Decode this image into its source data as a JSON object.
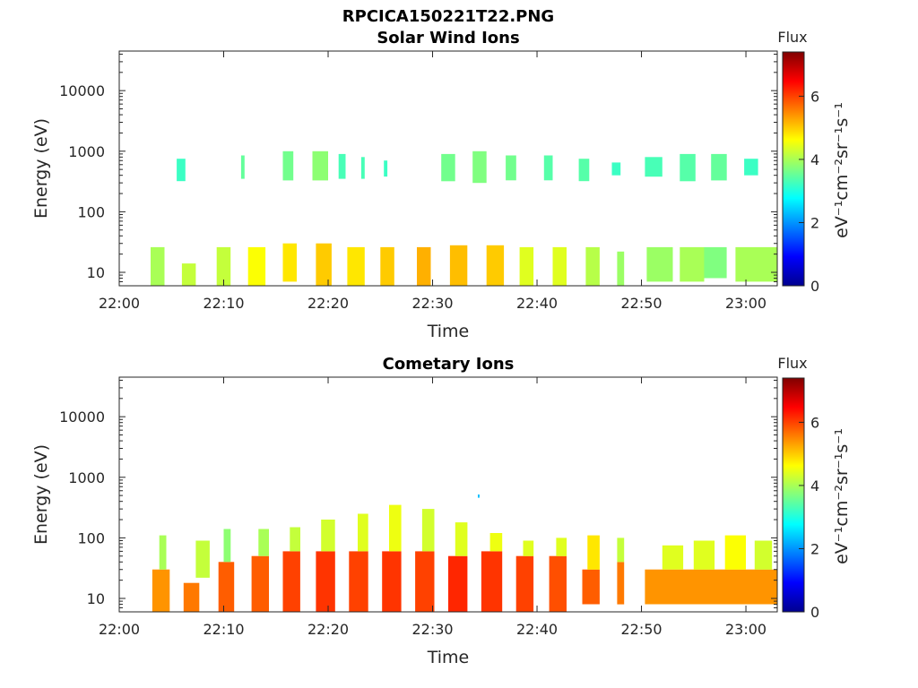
{
  "figure": {
    "title": "RPCICA150221T22.PNG"
  },
  "chart_data": [
    {
      "type": "heatmap",
      "title": "Solar Wind Ions",
      "xlabel": "Time",
      "ylabel": "Energy (eV)",
      "y_scale": "log",
      "ylim": [
        6,
        45000
      ],
      "xlim": [
        "22:00",
        "23:03"
      ],
      "x_ticks": [
        "22:00",
        "22:10",
        "22:20",
        "22:30",
        "22:40",
        "22:50",
        "23:00"
      ],
      "y_ticks": [
        "10",
        "100",
        "1000",
        "10000"
      ],
      "colorbar": {
        "title": "Flux",
        "unit": "eV⁻¹cm⁻²sr⁻¹s⁻¹",
        "range": [
          0,
          7.4
        ],
        "ticks": [
          "0",
          "2",
          "4",
          "6"
        ],
        "colormap": "jet"
      },
      "blocks": [
        {
          "t0": "22:05:30",
          "t1": "22:06:20",
          "e0": 320,
          "e1": 750,
          "flux": 3.2
        },
        {
          "t0": "22:11:40",
          "t1": "22:12:00",
          "e0": 350,
          "e1": 850,
          "flux": 3.5
        },
        {
          "t0": "22:15:40",
          "t1": "22:16:40",
          "e0": 330,
          "e1": 1000,
          "flux": 3.6
        },
        {
          "t0": "22:18:30",
          "t1": "22:20:00",
          "e0": 330,
          "e1": 1000,
          "flux": 3.8
        },
        {
          "t0": "22:21:00",
          "t1": "22:21:40",
          "e0": 350,
          "e1": 900,
          "flux": 3.3
        },
        {
          "t0": "22:23:10",
          "t1": "22:23:30",
          "e0": 350,
          "e1": 800,
          "flux": 3.3
        },
        {
          "t0": "22:25:20",
          "t1": "22:25:40",
          "e0": 380,
          "e1": 700,
          "flux": 3.2
        },
        {
          "t0": "22:30:50",
          "t1": "22:32:10",
          "e0": 320,
          "e1": 900,
          "flux": 3.6
        },
        {
          "t0": "22:33:50",
          "t1": "22:35:10",
          "e0": 300,
          "e1": 1000,
          "flux": 3.7
        },
        {
          "t0": "22:37:00",
          "t1": "22:38:00",
          "e0": 330,
          "e1": 850,
          "flux": 3.6
        },
        {
          "t0": "22:40:40",
          "t1": "22:41:30",
          "e0": 330,
          "e1": 850,
          "flux": 3.4
        },
        {
          "t0": "22:44:00",
          "t1": "22:45:00",
          "e0": 320,
          "e1": 750,
          "flux": 3.4
        },
        {
          "t0": "22:47:10",
          "t1": "22:48:00",
          "e0": 400,
          "e1": 650,
          "flux": 3.2
        },
        {
          "t0": "22:50:20",
          "t1": "22:52:00",
          "e0": 380,
          "e1": 800,
          "flux": 3.3
        },
        {
          "t0": "22:53:40",
          "t1": "22:55:10",
          "e0": 320,
          "e1": 900,
          "flux": 3.4
        },
        {
          "t0": "22:56:40",
          "t1": "22:58:10",
          "e0": 330,
          "e1": 900,
          "flux": 3.5
        },
        {
          "t0": "22:59:50",
          "t1": "23:01:10",
          "e0": 400,
          "e1": 750,
          "flux": 3.2
        },
        {
          "t0": "22:03:00",
          "t1": "22:04:20",
          "e0": 6,
          "e1": 26,
          "flux": 4.0
        },
        {
          "t0": "22:06:00",
          "t1": "22:07:20",
          "e0": 6,
          "e1": 14,
          "flux": 4.2
        },
        {
          "t0": "22:09:20",
          "t1": "22:10:40",
          "e0": 6,
          "e1": 26,
          "flux": 4.2
        },
        {
          "t0": "22:12:20",
          "t1": "22:14:00",
          "e0": 6,
          "e1": 26,
          "flux": 4.6
        },
        {
          "t0": "22:15:40",
          "t1": "22:17:00",
          "e0": 7,
          "e1": 30,
          "flux": 4.8
        },
        {
          "t0": "22:18:50",
          "t1": "22:20:20",
          "e0": 6,
          "e1": 30,
          "flux": 5.0
        },
        {
          "t0": "22:21:50",
          "t1": "22:23:30",
          "e0": 6,
          "e1": 26,
          "flux": 4.8
        },
        {
          "t0": "22:25:00",
          "t1": "22:26:20",
          "e0": 6,
          "e1": 26,
          "flux": 5.0
        },
        {
          "t0": "22:28:30",
          "t1": "22:29:50",
          "e0": 6,
          "e1": 26,
          "flux": 5.2
        },
        {
          "t0": "22:31:40",
          "t1": "22:33:20",
          "e0": 6,
          "e1": 28,
          "flux": 5.1
        },
        {
          "t0": "22:35:10",
          "t1": "22:36:50",
          "e0": 6,
          "e1": 28,
          "flux": 5.0
        },
        {
          "t0": "22:38:20",
          "t1": "22:39:40",
          "e0": 6,
          "e1": 26,
          "flux": 4.4
        },
        {
          "t0": "22:41:30",
          "t1": "22:42:50",
          "e0": 6,
          "e1": 26,
          "flux": 4.4
        },
        {
          "t0": "22:44:40",
          "t1": "22:46:00",
          "e0": 6,
          "e1": 26,
          "flux": 4.1
        },
        {
          "t0": "22:47:40",
          "t1": "22:48:20",
          "e0": 6,
          "e1": 22,
          "flux": 3.9
        },
        {
          "t0": "22:50:30",
          "t1": "22:53:00",
          "e0": 7,
          "e1": 26,
          "flux": 3.9
        },
        {
          "t0": "22:53:40",
          "t1": "22:56:00",
          "e0": 7,
          "e1": 26,
          "flux": 4.0
        },
        {
          "t0": "22:56:00",
          "t1": "22:58:10",
          "e0": 8,
          "e1": 26,
          "flux": 3.7
        },
        {
          "t0": "22:59:00",
          "t1": "23:03:00",
          "e0": 7,
          "e1": 26,
          "flux": 4.0
        }
      ]
    },
    {
      "type": "heatmap",
      "title": "Cometary Ions",
      "xlabel": "Time",
      "ylabel": "Energy (eV)",
      "y_scale": "log",
      "ylim": [
        6,
        45000
      ],
      "xlim": [
        "22:00",
        "23:03"
      ],
      "x_ticks": [
        "22:00",
        "22:10",
        "22:20",
        "22:30",
        "22:40",
        "22:50",
        "23:00"
      ],
      "y_ticks": [
        "10",
        "100",
        "1000",
        "10000"
      ],
      "colorbar": {
        "title": "Flux",
        "unit": "eV⁻¹cm⁻²sr⁻¹s⁻¹",
        "range": [
          0,
          7.4
        ],
        "ticks": [
          "0",
          "2",
          "4",
          "6"
        ],
        "colormap": "jet"
      },
      "blocks": [
        {
          "t0": "22:03:10",
          "t1": "22:04:50",
          "e0": 6,
          "e1": 30,
          "flux": 5.4
        },
        {
          "t0": "22:03:50",
          "t1": "22:04:30",
          "e0": 30,
          "e1": 110,
          "flux": 4.0
        },
        {
          "t0": "22:06:10",
          "t1": "22:07:40",
          "e0": 6,
          "e1": 18,
          "flux": 5.6
        },
        {
          "t0": "22:07:20",
          "t1": "22:08:40",
          "e0": 22,
          "e1": 90,
          "flux": 4.2
        },
        {
          "t0": "22:09:30",
          "t1": "22:11:00",
          "e0": 6,
          "e1": 40,
          "flux": 5.8
        },
        {
          "t0": "22:10:00",
          "t1": "22:10:40",
          "e0": 40,
          "e1": 140,
          "flux": 3.8
        },
        {
          "t0": "22:12:40",
          "t1": "22:14:20",
          "e0": 6,
          "e1": 50,
          "flux": 5.8
        },
        {
          "t0": "22:13:20",
          "t1": "22:14:20",
          "e0": 50,
          "e1": 140,
          "flux": 4.0
        },
        {
          "t0": "22:15:40",
          "t1": "22:17:20",
          "e0": 6,
          "e1": 60,
          "flux": 6.0
        },
        {
          "t0": "22:16:20",
          "t1": "22:17:20",
          "e0": 60,
          "e1": 150,
          "flux": 4.2
        },
        {
          "t0": "22:18:50",
          "t1": "22:20:40",
          "e0": 6,
          "e1": 60,
          "flux": 6.1
        },
        {
          "t0": "22:19:20",
          "t1": "22:20:40",
          "e0": 60,
          "e1": 200,
          "flux": 4.3
        },
        {
          "t0": "22:22:00",
          "t1": "22:23:50",
          "e0": 6,
          "e1": 60,
          "flux": 6.0
        },
        {
          "t0": "22:22:50",
          "t1": "22:23:50",
          "e0": 60,
          "e1": 250,
          "flux": 4.4
        },
        {
          "t0": "22:25:10",
          "t1": "22:27:00",
          "e0": 6,
          "e1": 60,
          "flux": 6.1
        },
        {
          "t0": "22:25:50",
          "t1": "22:27:00",
          "e0": 60,
          "e1": 350,
          "flux": 4.5
        },
        {
          "t0": "22:28:20",
          "t1": "22:30:10",
          "e0": 6,
          "e1": 60,
          "flux": 6.0
        },
        {
          "t0": "22:29:00",
          "t1": "22:30:10",
          "e0": 60,
          "e1": 300,
          "flux": 4.3
        },
        {
          "t0": "22:31:30",
          "t1": "22:33:20",
          "e0": 6,
          "e1": 50,
          "flux": 6.2
        },
        {
          "t0": "22:32:10",
          "t1": "22:33:20",
          "e0": 50,
          "e1": 180,
          "flux": 4.4
        },
        {
          "t0": "22:34:40",
          "t1": "22:36:40",
          "e0": 6,
          "e1": 60,
          "flux": 6.1
        },
        {
          "t0": "22:35:30",
          "t1": "22:36:40",
          "e0": 60,
          "e1": 120,
          "flux": 4.5
        },
        {
          "t0": "22:38:00",
          "t1": "22:39:40",
          "e0": 6,
          "e1": 50,
          "flux": 6.0
        },
        {
          "t0": "22:38:40",
          "t1": "22:39:40",
          "e0": 50,
          "e1": 90,
          "flux": 4.4
        },
        {
          "t0": "22:41:10",
          "t1": "22:42:50",
          "e0": 6,
          "e1": 50,
          "flux": 5.9
        },
        {
          "t0": "22:41:50",
          "t1": "22:42:50",
          "e0": 50,
          "e1": 100,
          "flux": 4.4
        },
        {
          "t0": "22:44:20",
          "t1": "22:46:00",
          "e0": 8,
          "e1": 30,
          "flux": 5.8
        },
        {
          "t0": "22:44:50",
          "t1": "22:46:00",
          "e0": 30,
          "e1": 110,
          "flux": 4.8
        },
        {
          "t0": "22:47:40",
          "t1": "22:48:20",
          "e0": 8,
          "e1": 40,
          "flux": 5.6
        },
        {
          "t0": "22:47:40",
          "t1": "22:48:20",
          "e0": 40,
          "e1": 100,
          "flux": 4.2
        },
        {
          "t0": "22:50:20",
          "t1": "23:03:00",
          "e0": 8,
          "e1": 30,
          "flux": 5.4
        },
        {
          "t0": "22:52:00",
          "t1": "22:54:00",
          "e0": 30,
          "e1": 75,
          "flux": 4.4
        },
        {
          "t0": "22:55:00",
          "t1": "22:57:00",
          "e0": 30,
          "e1": 90,
          "flux": 4.4
        },
        {
          "t0": "22:58:00",
          "t1": "23:00:00",
          "e0": 30,
          "e1": 110,
          "flux": 4.6
        },
        {
          "t0": "23:00:50",
          "t1": "23:02:30",
          "e0": 30,
          "e1": 90,
          "flux": 4.3
        },
        {
          "t0": "22:34:20",
          "t1": "22:34:30",
          "e0": 460,
          "e1": 520,
          "flux": 2.3
        }
      ]
    }
  ]
}
